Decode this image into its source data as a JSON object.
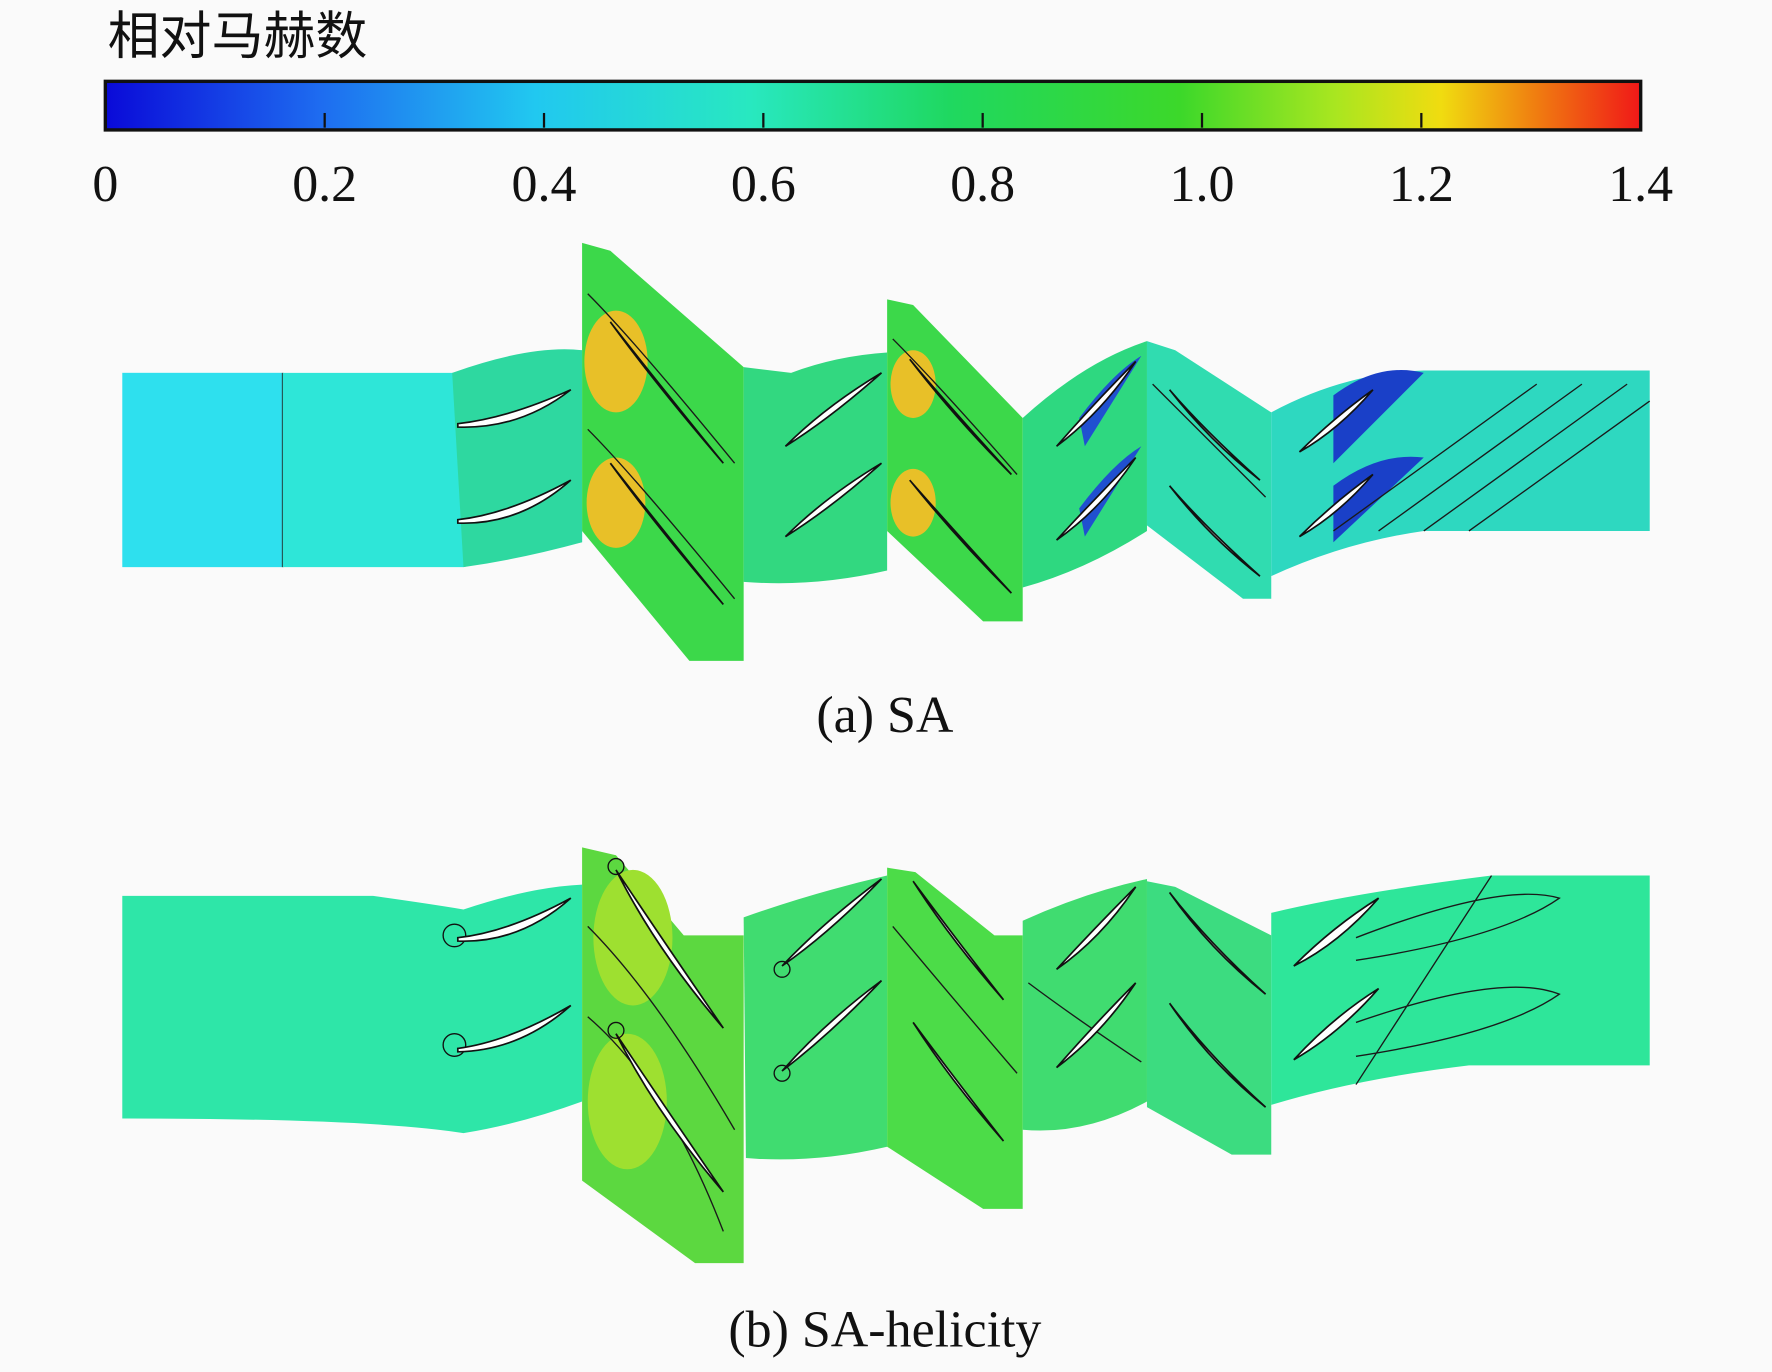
{
  "colorbar": {
    "title": "相对马赫数",
    "range": [
      0,
      1.4
    ],
    "ticks": [
      0,
      0.2,
      0.4,
      0.6,
      0.8,
      {
        "value": 1,
        "label": "1.0"
      },
      1.2,
      1.4
    ]
  },
  "panels": [
    {
      "caption": "(a) SA"
    },
    {
      "caption": "(b) SA-helicity"
    }
  ]
}
